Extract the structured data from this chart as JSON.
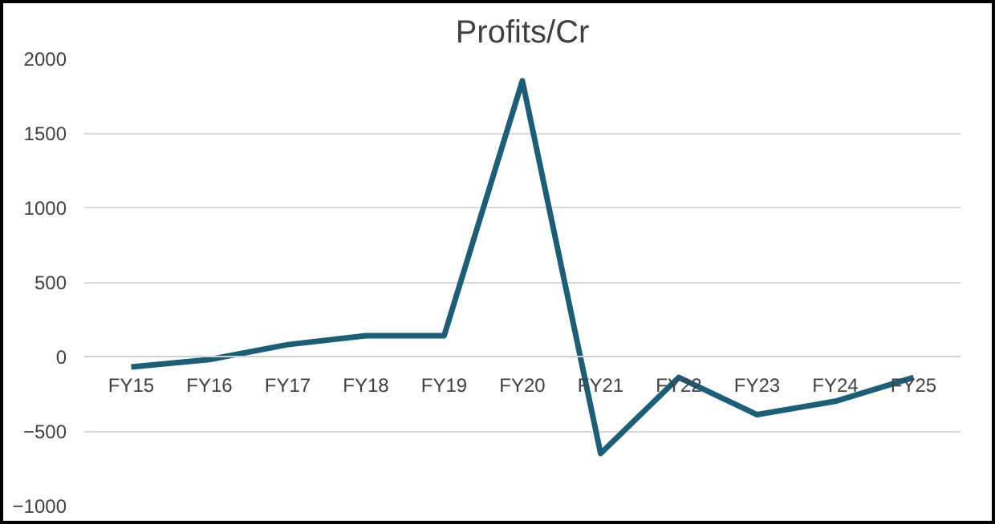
{
  "chart_data": {
    "type": "line",
    "title": "Profits/Cr",
    "categories": [
      "FY15",
      "FY16",
      "FY17",
      "FY18",
      "FY19",
      "FY20",
      "FY21",
      "FY22",
      "FY23",
      "FY24",
      "FY25"
    ],
    "series": [
      {
        "color": "#1b5e78",
        "values": [
          -70,
          -20,
          80,
          140,
          140,
          1850,
          -650,
          -140,
          -390,
          -300,
          -140
        ]
      }
    ],
    "ylim": [
      -1000,
      2000
    ],
    "yticks": [
      -1000,
      -500,
      0,
      500,
      1000,
      1500,
      2000
    ],
    "grid": "y",
    "marker": "none",
    "line_style": "solid"
  }
}
